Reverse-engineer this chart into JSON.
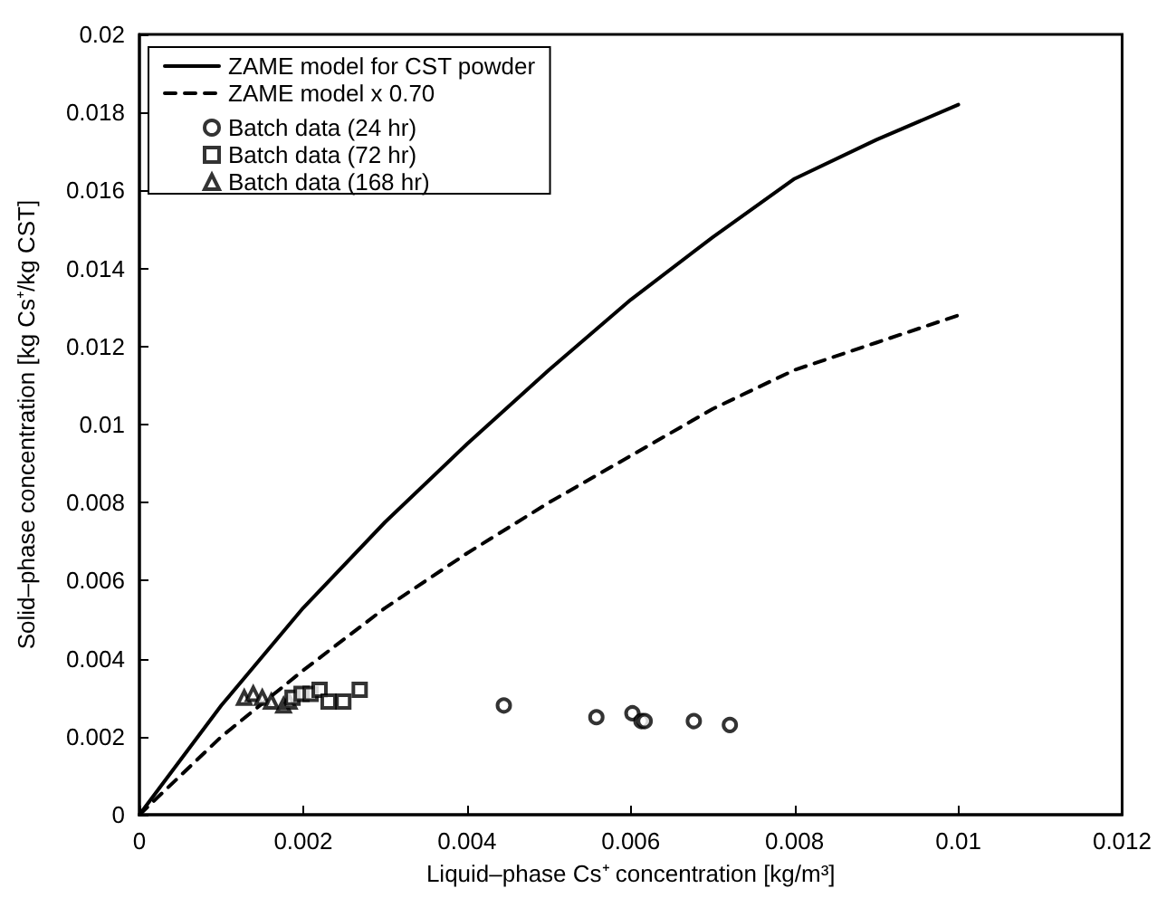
{
  "chart_data": {
    "type": "scatter",
    "xlabel": "Liquid–phase Cs⁺ concentration [kg/m³]",
    "ylabel": "Solid–phase concentration [kg Cs⁺/kg CST]",
    "xlim": [
      0,
      0.012
    ],
    "xticks": [
      0,
      0.002,
      0.004,
      0.006,
      0.008,
      0.01,
      0.012
    ],
    "ylim": [
      0,
      0.02
    ],
    "yticks": [
      0,
      0.002,
      0.004,
      0.006,
      0.008,
      0.01,
      0.012,
      0.014,
      0.016,
      0.018,
      0.02
    ],
    "grid": false,
    "legend": "top left",
    "series": [
      {
        "name": "ZAME model for CST powder",
        "type": "line",
        "line_style": "solid",
        "marker": "none",
        "color": "#000000",
        "x": [
          0,
          0.001,
          0.002,
          0.003,
          0.004,
          0.005,
          0.006,
          0.007,
          0.008,
          0.009,
          0.01
        ],
        "values": [
          0,
          0.0028,
          0.0053,
          0.0075,
          0.0095,
          0.0114,
          0.0132,
          0.0148,
          0.0163,
          0.0173,
          0.0182
        ]
      },
      {
        "name": "ZAME model x 0.70",
        "type": "line",
        "line_style": "dashed",
        "marker": "none",
        "color": "#000000",
        "x": [
          0,
          0.001,
          0.002,
          0.003,
          0.004,
          0.005,
          0.006,
          0.007,
          0.008,
          0.009,
          0.01
        ],
        "values": [
          0,
          0.002,
          0.0037,
          0.0053,
          0.0067,
          0.008,
          0.0092,
          0.0104,
          0.0114,
          0.0121,
          0.0128
        ]
      },
      {
        "name": "Batch data (24 hr)",
        "type": "scatter",
        "marker": "circle",
        "color": "#000000",
        "x": [
          0.00445,
          0.00558,
          0.00602,
          0.00613,
          0.00617,
          0.00677,
          0.00721
        ],
        "values": [
          0.0028,
          0.0025,
          0.0026,
          0.0024,
          0.0024,
          0.0024,
          0.0023
        ]
      },
      {
        "name": "Batch data (72 hr)",
        "type": "scatter",
        "marker": "square",
        "color": "#000000",
        "x": [
          0.00187,
          0.00198,
          0.00209,
          0.0022,
          0.00231,
          0.00249,
          0.00269
        ],
        "values": [
          0.003,
          0.0031,
          0.0031,
          0.0032,
          0.0029,
          0.0029,
          0.0032
        ]
      },
      {
        "name": "Batch data (168 hr)",
        "type": "scatter",
        "marker": "triangle",
        "color": "#000000",
        "x": [
          0.00128,
          0.00139,
          0.0015,
          0.00161,
          0.00176,
          0.00183
        ],
        "values": [
          0.003,
          0.0031,
          0.003,
          0.0029,
          0.0028,
          0.0029
        ]
      }
    ]
  }
}
